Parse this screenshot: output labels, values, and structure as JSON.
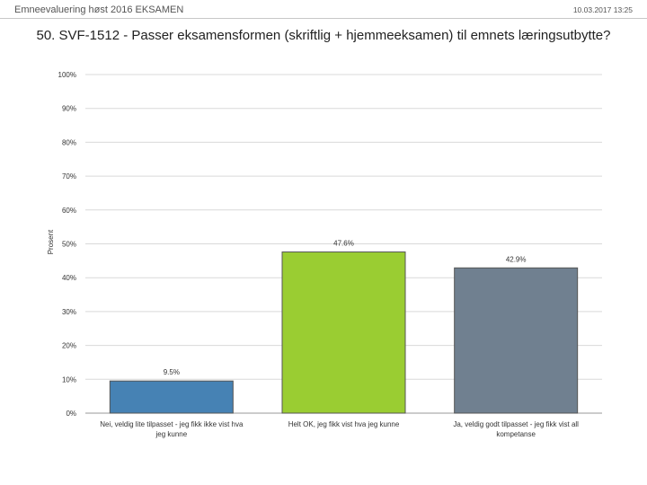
{
  "header": {
    "survey_title": "Emneevaluering høst 2016 EKSAMEN",
    "datetime": "10.03.2017 13:25"
  },
  "chart_data": {
    "type": "bar",
    "title": "50. SVF-1512 - Passer eksamensformen (skriftlig + hjemmeeksamen) til emnets læringsutbytte?",
    "ylabel": "Prosent",
    "xlabel": "",
    "ylim": [
      0,
      100
    ],
    "yticks": [
      0,
      10,
      20,
      30,
      40,
      50,
      60,
      70,
      80,
      90,
      100
    ],
    "ytick_labels": [
      "0%",
      "10%",
      "20%",
      "30%",
      "40%",
      "50%",
      "60%",
      "70%",
      "80%",
      "90%",
      "100%"
    ],
    "grid": true,
    "categories": [
      [
        "Nei, veldig lite tilpasset - jeg fikk ikke vist hva",
        "jeg kunne"
      ],
      [
        "Helt OK, jeg fikk vist hva jeg kunne"
      ],
      [
        "Ja, veldig godt tilpasset - jeg fikk vist all",
        "kompetanse"
      ]
    ],
    "values": [
      9.5,
      47.6,
      42.9
    ],
    "data_labels": [
      "9.5%",
      "47.6%",
      "42.9%"
    ],
    "colors": [
      "#4682b4",
      "#9acd32",
      "#708090"
    ]
  }
}
